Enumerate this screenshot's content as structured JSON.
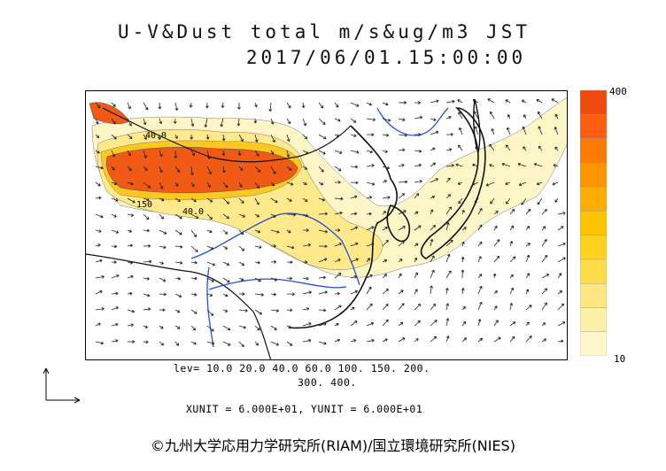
{
  "title_line1": "U-V&Dust total m/s&ug/m3 JST",
  "title_line2": "2017/06/01.15:00:00",
  "colorbar": {
    "max_label": "400",
    "min_label": "10",
    "colors": [
      "#fff7cc",
      "#fff0a8",
      "#ffe680",
      "#ffdc4a",
      "#ffd21f",
      "#ffc300",
      "#ffad00",
      "#ff9500",
      "#ff7a00",
      "#ff5e10",
      "#f04a10"
    ]
  },
  "contour_labels": [
    "40.0",
    "150",
    "40.0"
  ],
  "levels_line1": "lev= 10.0 20.0 40.0 60.0 100. 150. 200.",
  "levels_line2": "300. 400.",
  "units_line": "XUNIT = 6.000E+01, YUNIT = 6.000E+01",
  "copyright": "©九州大学応用力学研究所(RIAM)/国立環境研究所(NIES)"
}
